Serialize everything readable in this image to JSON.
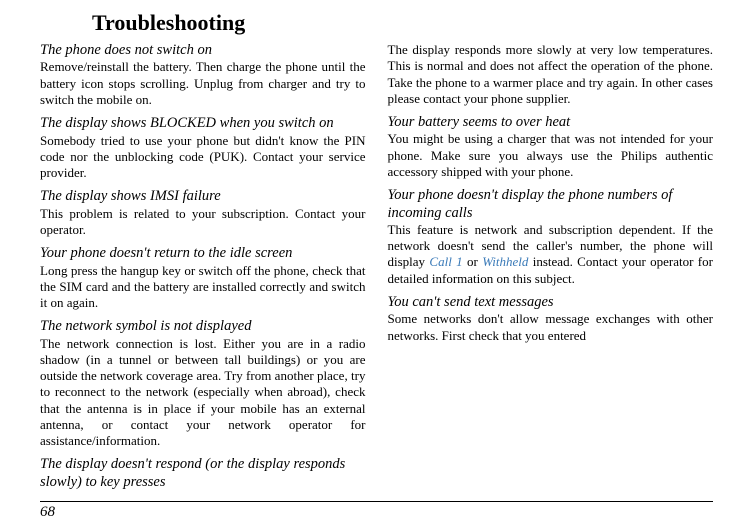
{
  "title": "Troubleshooting",
  "page_number": "68",
  "sections": [
    {
      "heading": "The phone does not switch on",
      "body": "Remove/reinstall the battery. Then charge the phone until the battery icon stops scrolling. Unplug from charger and try to switch the mobile on."
    },
    {
      "heading": "The display shows BLOCKED when you switch on",
      "body": "Somebody tried to use your phone but didn't know the PIN code nor the unblocking code (PUK). Contact your service provider."
    },
    {
      "heading": "The display shows IMSI failure",
      "body": "This problem is related to your subscription. Contact your operator."
    },
    {
      "heading": "Your phone doesn't return to the idle screen",
      "body": "Long press the hangup key or switch off the phone, check that the SIM card and the battery are installed correctly and switch it on again."
    },
    {
      "heading": "The network symbol is not displayed",
      "body": "The network connection is lost. Either you are in a radio shadow (in a tunnel or between tall buildings) or you are outside the network coverage area. Try from another place, try to reconnect to the network (especially when abroad), check that the antenna is in place if your mobile has an external antenna, or contact your network operator for assistance/information."
    },
    {
      "heading": "The display doesn't respond (or the display responds slowly) to key presses",
      "body": "The display responds more slowly at very low temperatures. This is normal and does not affect the operation of the phone. Take the phone to a warmer place and try again. In other cases please contact your phone supplier."
    },
    {
      "heading": "Your battery seems to over heat",
      "body": "You might be using a charger that was not intended for your phone. Make sure you always use the Philips authentic accessory shipped with your phone."
    },
    {
      "heading": "Your phone doesn't display the phone numbers of incoming calls",
      "body_pre": "This feature is network and subscription dependent. If the network doesn't send the caller's number, the phone will display ",
      "blue1": "Call 1",
      "mid": " or ",
      "blue2": "Withheld",
      "body_post": " instead. Contact your operator for detailed information on this subject."
    },
    {
      "heading": "You can't send text messages",
      "body": "Some networks don't allow message exchanges with other networks. First check that you entered"
    }
  ]
}
